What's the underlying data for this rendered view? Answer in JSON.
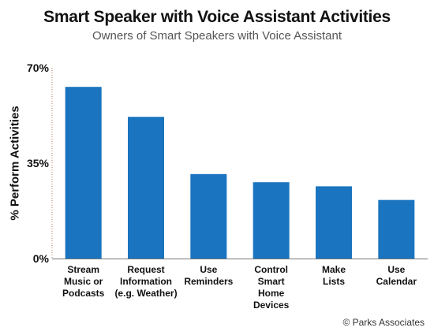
{
  "chart_data": {
    "type": "bar",
    "title": "Smart Speaker with Voice Assistant Activities",
    "subtitle": "Owners of Smart Speakers with Voice Assistant",
    "ylabel": "% Perform Activities",
    "xlabel": "",
    "ylim": [
      0,
      70
    ],
    "y_ticks": [
      "70%",
      "35%",
      "0%"
    ],
    "y_tick_values": [
      70,
      35,
      0
    ],
    "categories": [
      [
        "Stream",
        "Music or",
        "Podcasts"
      ],
      [
        "Request",
        "Information",
        "(e.g. Weather)"
      ],
      [
        "Use",
        "Reminders"
      ],
      [
        "Control",
        "Smart",
        "Home",
        "Devices"
      ],
      [
        "Make",
        "Lists"
      ],
      [
        "Use",
        "Calendar"
      ]
    ],
    "values": [
      63,
      52,
      31,
      28,
      26.5,
      21.5
    ],
    "bar_color": "#1a74bf",
    "grid": false,
    "legend": "none"
  },
  "source": "© Parks Associates"
}
